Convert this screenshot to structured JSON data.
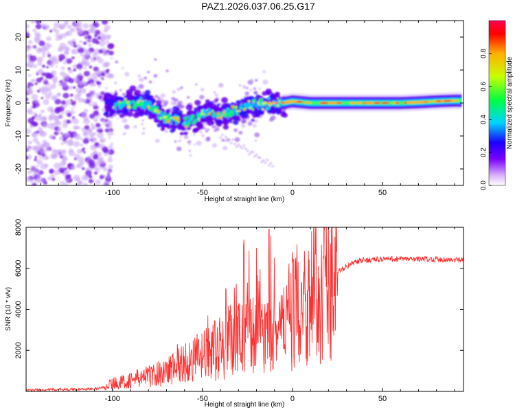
{
  "figure": {
    "title": "PAZ1.2026.037.06.25.G17"
  },
  "chart_data": [
    {
      "type": "heatmap",
      "title": "PAZ1.2026.037.06.25.G17",
      "xlabel": "Height of straight line (km)",
      "ylabel": "Frequency (Hz)",
      "xlim": [
        -148,
        95
      ],
      "ylim": [
        -25,
        25
      ],
      "x_ticks": [
        -100,
        -50,
        0,
        50
      ],
      "x_tick_labels": [
        "-100",
        "-50",
        "0",
        "50"
      ],
      "y_ticks": [
        -20,
        -10,
        0,
        10,
        20
      ],
      "y_tick_labels": [
        "-20",
        "-10",
        "0",
        "10",
        "20"
      ],
      "description_series": [
        {
          "name": "dominant frequency track",
          "x": [
            -100,
            -95,
            -90,
            -85,
            -80,
            -75,
            -70,
            -65,
            -60,
            -55,
            -50,
            -45,
            -40,
            -35,
            -30,
            -25,
            -20,
            -15,
            -10,
            -5,
            0,
            10,
            20,
            30,
            40,
            50,
            60,
            70,
            80,
            90
          ],
          "y": [
            -1,
            0,
            0,
            0,
            -1,
            -3,
            -5,
            -5,
            -6,
            -5,
            -3,
            -3,
            -4,
            -3,
            -2,
            -1,
            -1,
            0,
            0,
            0,
            0.5,
            0,
            0,
            0,
            0,
            0,
            0,
            0.2,
            0.5,
            0.7
          ]
        }
      ],
      "colorbar": {
        "label": "Normalized spectral amplitude",
        "range": [
          0,
          1
        ],
        "ticks": [
          0.0,
          0.2,
          0.4,
          0.6,
          0.8
        ],
        "tick_labels": [
          "0.0",
          "0.2",
          "0.4",
          "0.6",
          "0.8"
        ],
        "colors": [
          "#ffffff",
          "#d9b3ff",
          "#7a00ff",
          "#1a00ff",
          "#00d5ff",
          "#00ff40",
          "#c8ff00",
          "#ffb000",
          "#ff0000",
          "#ff0050"
        ]
      }
    },
    {
      "type": "line",
      "xlabel": "Height of straight line (km)",
      "ylabel": "SNR (10 * v/v)",
      "xlim": [
        -148,
        95
      ],
      "ylim": [
        0,
        8000
      ],
      "x_ticks": [
        -100,
        -50,
        0,
        50
      ],
      "x_tick_labels": [
        "-100",
        "-50",
        "0",
        "50"
      ],
      "y_ticks": [
        2000,
        4000,
        6000,
        8000
      ],
      "y_tick_labels": [
        "2000",
        "4000",
        "6000",
        "8000"
      ],
      "color": "#ff3030",
      "series": [
        {
          "name": "SNR",
          "x": [
            -148,
            -140,
            -130,
            -120,
            -110,
            -105,
            -100,
            -95,
            -90,
            -85,
            -80,
            -75,
            -70,
            -65,
            -60,
            -55,
            -50,
            -45,
            -40,
            -35,
            -30,
            -25,
            -20,
            -15,
            -10,
            -5,
            0,
            5,
            10,
            15,
            20,
            25,
            30,
            35,
            40,
            50,
            60,
            70,
            80,
            90,
            95
          ],
          "y": [
            60,
            80,
            90,
            100,
            120,
            200,
            400,
            450,
            550,
            650,
            750,
            850,
            1000,
            1200,
            1400,
            1550,
            1700,
            1900,
            2100,
            2400,
            2600,
            2900,
            2500,
            2500,
            2700,
            3200,
            3900,
            4300,
            4700,
            5100,
            5500,
            5800,
            6100,
            6300,
            6400,
            6450,
            6450,
            6450,
            6450,
            6400,
            6400
          ]
        },
        {
          "name": "spikes",
          "x": [
            -64,
            -47,
            -37,
            -27,
            -25,
            -20,
            -13,
            -12,
            5,
            12,
            14
          ],
          "y": [
            2300,
            3700,
            5000,
            7400,
            5300,
            7000,
            7900,
            7600,
            5300,
            5200,
            2400
          ]
        }
      ]
    }
  ]
}
